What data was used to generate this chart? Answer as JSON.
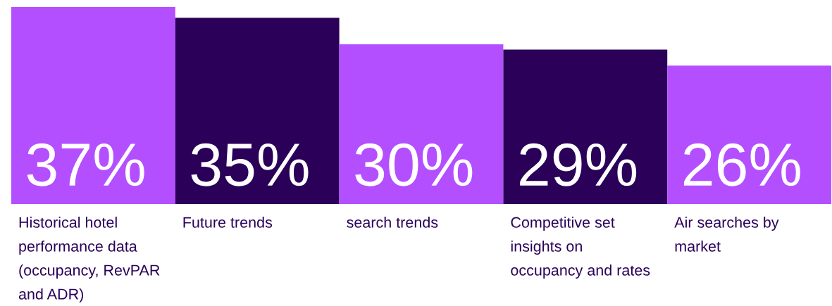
{
  "chart_data": {
    "type": "bar",
    "categories": [
      "Historical hotel performance data (occupancy, RevPAR and ADR)",
      "Future trends",
      "search trends",
      "Competitive set insights on occupancy and rates",
      "Air searches by market"
    ],
    "values": [
      37,
      35,
      30,
      29,
      26
    ],
    "value_labels": [
      "37%",
      "35%",
      "30%",
      "29%",
      "26%"
    ],
    "colors": [
      "#b44fff",
      "#2a0059",
      "#b44fff",
      "#2a0059",
      "#b44fff"
    ]
  }
}
